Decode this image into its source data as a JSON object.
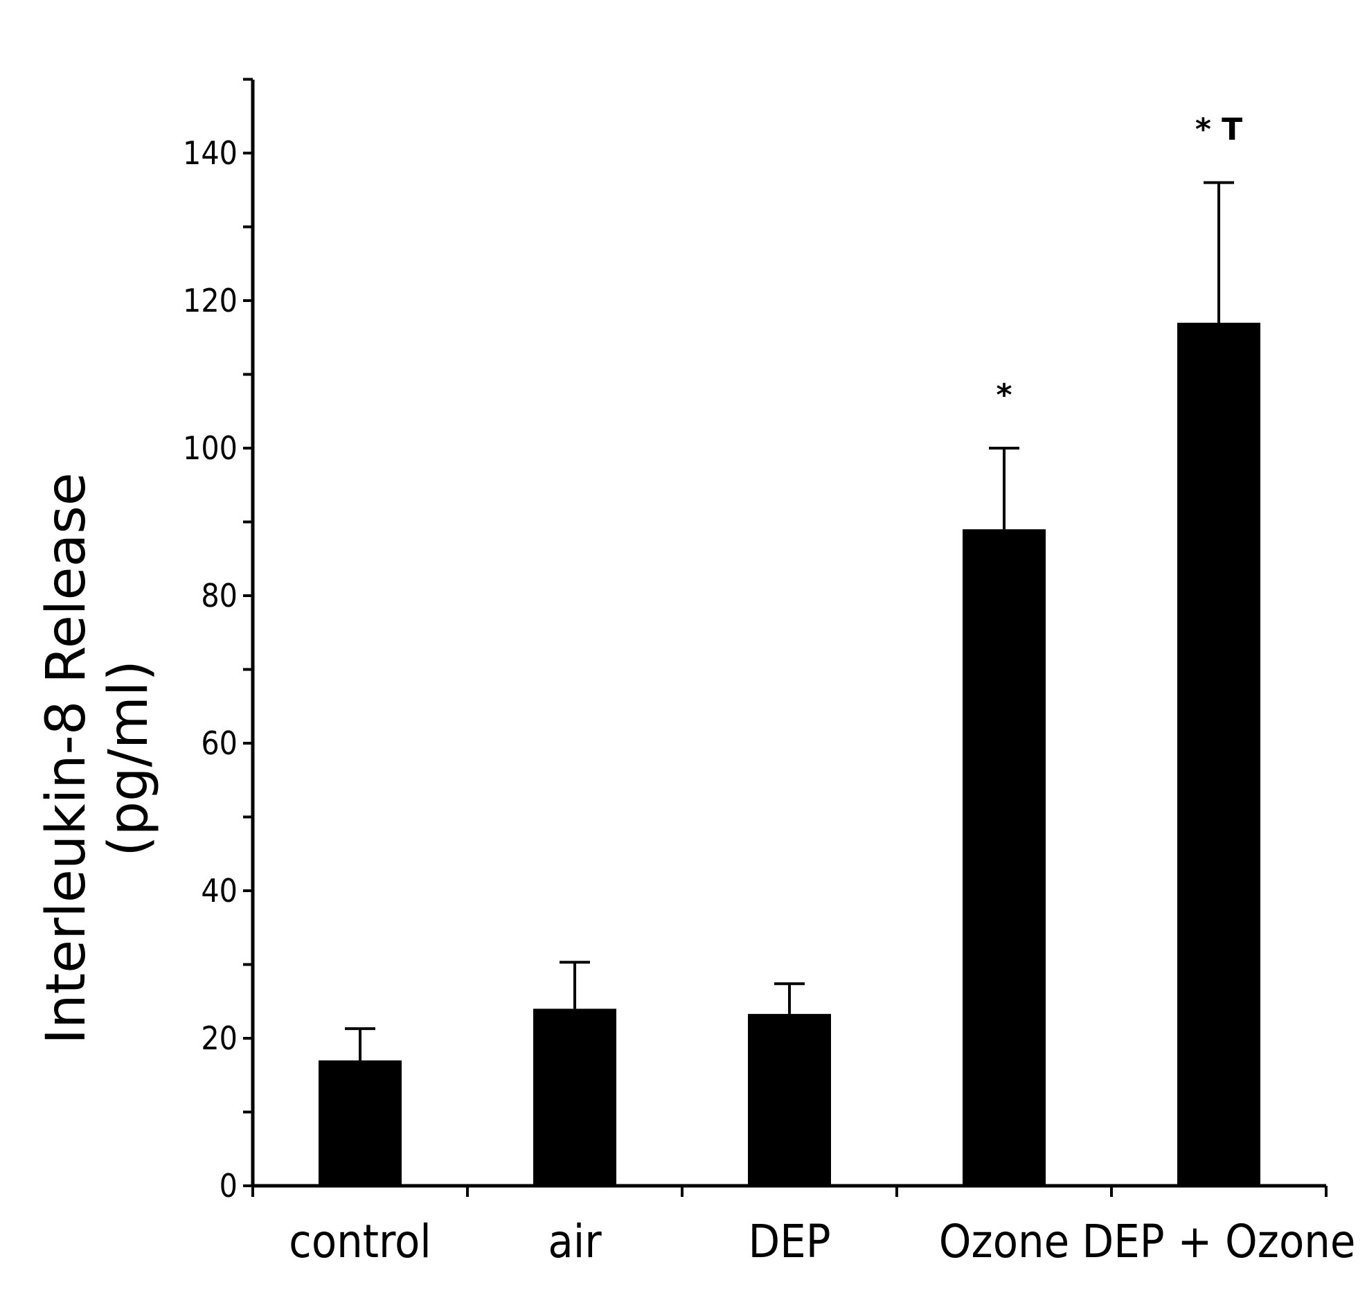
{
  "chart_data": {
    "type": "bar",
    "categories": [
      "control",
      "air",
      "DEP",
      "Ozone",
      "DEP + Ozone"
    ],
    "values": [
      17,
      24,
      23.3,
      89,
      117
    ],
    "errors": [
      4.3,
      6.3,
      4.1,
      11,
      19
    ],
    "annotations": [
      "",
      "",
      "",
      "*",
      "* T"
    ],
    "title": "",
    "xlabel": "",
    "ylabel_line1": "Interleukin-8 Release",
    "ylabel_line2": "(pg/ml)",
    "ylim": [
      0,
      150
    ],
    "yticks": [
      0,
      20,
      40,
      60,
      80,
      100,
      120,
      140
    ],
    "grid": false,
    "legend": "none",
    "bar_color": "#000000"
  }
}
